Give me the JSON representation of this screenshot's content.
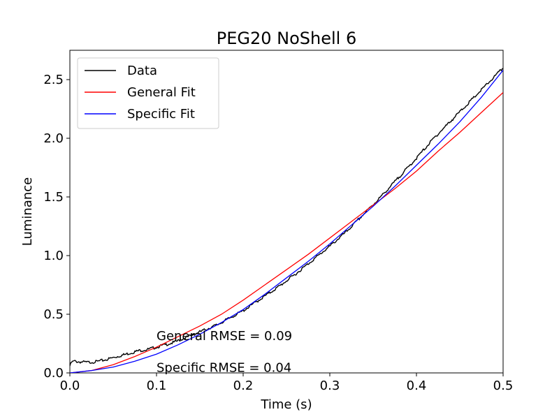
{
  "chart_data": {
    "type": "line",
    "title": "PEG20 NoShell 6",
    "xlabel": "Time (s)",
    "ylabel": "Luminance",
    "xlim": [
      0.0,
      0.5
    ],
    "ylim": [
      0.0,
      2.75
    ],
    "xticks": [
      0.0,
      0.1,
      0.2,
      0.3,
      0.4,
      0.5
    ],
    "xtick_labels": [
      "0.0",
      "0.1",
      "0.2",
      "0.3",
      "0.4",
      "0.5"
    ],
    "yticks": [
      0.0,
      0.5,
      1.0,
      1.5,
      2.0,
      2.5
    ],
    "ytick_labels": [
      "0.0",
      "0.5",
      "1.0",
      "1.5",
      "2.0",
      "2.5"
    ],
    "grid": false,
    "legend_position": "upper-left",
    "series": [
      {
        "name": "Data",
        "color": "#000000",
        "x": [
          0.0,
          0.002,
          0.005,
          0.01,
          0.02,
          0.03,
          0.04,
          0.05,
          0.06,
          0.07,
          0.08,
          0.09,
          0.1,
          0.11,
          0.12,
          0.13,
          0.14,
          0.15,
          0.16,
          0.17,
          0.18,
          0.2,
          0.22,
          0.24,
          0.26,
          0.28,
          0.3,
          0.32,
          0.34,
          0.36,
          0.38,
          0.4,
          0.42,
          0.44,
          0.46,
          0.48,
          0.5
        ],
        "y": [
          0.06,
          0.09,
          0.1,
          0.095,
          0.09,
          0.095,
          0.11,
          0.13,
          0.15,
          0.17,
          0.19,
          0.2,
          0.22,
          0.24,
          0.26,
          0.29,
          0.32,
          0.35,
          0.38,
          0.41,
          0.45,
          0.53,
          0.63,
          0.73,
          0.84,
          0.96,
          1.08,
          1.21,
          1.36,
          1.51,
          1.67,
          1.83,
          2.0,
          2.15,
          2.3,
          2.45,
          2.6
        ]
      },
      {
        "name": "General Fit",
        "color": "#ff0000",
        "x": [
          0.0,
          0.025,
          0.05,
          0.075,
          0.1,
          0.125,
          0.15,
          0.175,
          0.2,
          0.225,
          0.25,
          0.275,
          0.3,
          0.325,
          0.35,
          0.375,
          0.4,
          0.425,
          0.45,
          0.475,
          0.5
        ],
        "y": [
          0.0,
          0.02,
          0.07,
          0.14,
          0.22,
          0.31,
          0.4,
          0.5,
          0.62,
          0.75,
          0.88,
          1.01,
          1.15,
          1.29,
          1.43,
          1.57,
          1.72,
          1.89,
          2.05,
          2.22,
          2.39
        ]
      },
      {
        "name": "Specific Fit",
        "color": "#0000ff",
        "x": [
          0.0,
          0.025,
          0.05,
          0.075,
          0.1,
          0.125,
          0.15,
          0.175,
          0.2,
          0.225,
          0.25,
          0.275,
          0.3,
          0.325,
          0.35,
          0.375,
          0.4,
          0.425,
          0.45,
          0.475,
          0.5
        ],
        "y": [
          0.0,
          0.02,
          0.05,
          0.1,
          0.16,
          0.24,
          0.33,
          0.43,
          0.54,
          0.67,
          0.81,
          0.95,
          1.1,
          1.26,
          1.42,
          1.59,
          1.77,
          1.95,
          2.14,
          2.35,
          2.58
        ]
      }
    ],
    "annotations": [
      {
        "text": "General RMSE = 0.09",
        "x": 0.1,
        "y": 0.28
      },
      {
        "text": "Specific RMSE = 0.04",
        "x": 0.1,
        "y": 0.01
      }
    ]
  }
}
